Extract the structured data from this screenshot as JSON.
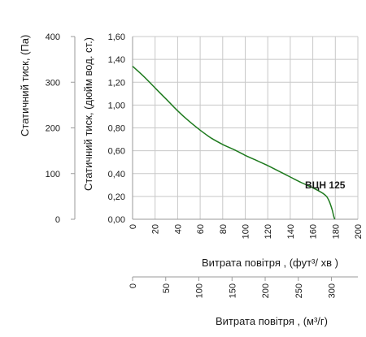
{
  "chart_data": {
    "type": "line",
    "series": [
      {
        "name": "ВЦН 125",
        "color": "#1e7a1e",
        "x": [
          0,
          10,
          20,
          30,
          40,
          50,
          60,
          70,
          80,
          90,
          100,
          110,
          120,
          130,
          140,
          150,
          160,
          170,
          174,
          177,
          178.5,
          179.5
        ],
        "y": [
          1.34,
          1.25,
          1.15,
          1.05,
          0.95,
          0.86,
          0.78,
          0.71,
          0.655,
          0.61,
          0.56,
          0.515,
          0.47,
          0.42,
          0.37,
          0.32,
          0.275,
          0.22,
          0.17,
          0.09,
          0.03,
          0.0
        ]
      }
    ],
    "series_label": "ВЦН 125",
    "x_cfm": {
      "label": "Витрата повітря , (фут³/ хв )",
      "min": 0,
      "max": 200,
      "ticks": [
        "0",
        "20",
        "40",
        "60",
        "80",
        "100",
        "120",
        "140",
        "160",
        "180",
        "200"
      ]
    },
    "x_m3h": {
      "label": "Витрата повітря , (м³/г)",
      "min": 0,
      "max": 339.8,
      "ticks": [
        "0",
        "50",
        "100",
        "150",
        "200",
        "250",
        "300"
      ]
    },
    "y_inwg": {
      "label": "Статичний тиск, (дюйм вод. ст.)",
      "min": 0,
      "max": 1.6,
      "ticks": [
        "0,00",
        "0,20",
        "0,40",
        "0,60",
        "0,80",
        "1,00",
        "1,20",
        "1,40",
        "1,60"
      ]
    },
    "y_pa": {
      "label": "Статичний тиск, (Па)",
      "min": 0,
      "max": 400,
      "ticks": [
        "0",
        "100",
        "200",
        "300",
        "400"
      ]
    },
    "grid": "both"
  }
}
